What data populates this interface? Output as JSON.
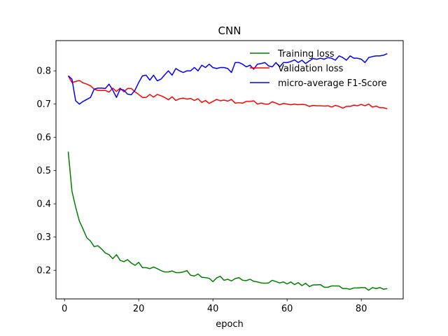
{
  "chart_data": {
    "type": "line",
    "title": "CNN",
    "xlabel": "epoch",
    "ylabel": "",
    "xlim": [
      -2.3,
      91.3
    ],
    "ylim": [
      0.114,
      0.891
    ],
    "xticks": [
      0,
      20,
      40,
      60,
      80
    ],
    "yticks": [
      0.2,
      0.3,
      0.4,
      0.5,
      0.6,
      0.7,
      0.8
    ],
    "grid": false,
    "legend_position": "top-right",
    "series": [
      {
        "name": "Training loss",
        "color": "#008000",
        "x": [
          1,
          2,
          3,
          4,
          5,
          6,
          7,
          8,
          9,
          10,
          11,
          12,
          13,
          14,
          15,
          16,
          17,
          18,
          19,
          20,
          21,
          22,
          23,
          24,
          25,
          26,
          27,
          28,
          29,
          30,
          31,
          32,
          33,
          34,
          35,
          36,
          37,
          38,
          39,
          40,
          41,
          42,
          43,
          44,
          45,
          46,
          47,
          48,
          49,
          50,
          51,
          52,
          53,
          54,
          55,
          56,
          57,
          58,
          59,
          60,
          61,
          62,
          63,
          64,
          65,
          66,
          67,
          68,
          69,
          70,
          71,
          72,
          73,
          74,
          75,
          76,
          77,
          78,
          79,
          80,
          81,
          82,
          83,
          84,
          85,
          86,
          87
        ],
        "values": [
          0.557,
          0.438,
          0.39,
          0.348,
          0.324,
          0.298,
          0.288,
          0.271,
          0.274,
          0.264,
          0.252,
          0.247,
          0.235,
          0.247,
          0.23,
          0.226,
          0.232,
          0.222,
          0.215,
          0.224,
          0.208,
          0.208,
          0.205,
          0.21,
          0.205,
          0.199,
          0.195,
          0.195,
          0.198,
          0.193,
          0.193,
          0.195,
          0.199,
          0.185,
          0.183,
          0.189,
          0.179,
          0.178,
          0.176,
          0.166,
          0.177,
          0.182,
          0.17,
          0.173,
          0.168,
          0.175,
          0.178,
          0.17,
          0.169,
          0.173,
          0.167,
          0.165,
          0.162,
          0.161,
          0.162,
          0.17,
          0.166,
          0.162,
          0.165,
          0.159,
          0.165,
          0.157,
          0.163,
          0.154,
          0.161,
          0.151,
          0.156,
          0.156,
          0.157,
          0.149,
          0.149,
          0.153,
          0.153,
          0.153,
          0.145,
          0.145,
          0.143,
          0.147,
          0.147,
          0.148,
          0.148,
          0.14,
          0.148,
          0.145,
          0.148,
          0.143,
          0.145
        ]
      },
      {
        "name": "Validation loss",
        "color": "#ff0000",
        "x": [
          1,
          2,
          3,
          4,
          5,
          6,
          7,
          8,
          9,
          10,
          11,
          12,
          13,
          14,
          15,
          16,
          17,
          18,
          19,
          20,
          21,
          22,
          23,
          24,
          25,
          26,
          27,
          28,
          29,
          30,
          31,
          32,
          33,
          34,
          35,
          36,
          37,
          38,
          39,
          40,
          41,
          42,
          43,
          44,
          45,
          46,
          47,
          48,
          49,
          50,
          51,
          52,
          53,
          54,
          55,
          56,
          57,
          58,
          59,
          60,
          61,
          62,
          63,
          64,
          65,
          66,
          67,
          68,
          69,
          70,
          71,
          72,
          73,
          74,
          75,
          76,
          77,
          78,
          79,
          80,
          81,
          82,
          83,
          84,
          85,
          86,
          87
        ],
        "values": [
          0.785,
          0.765,
          0.768,
          0.771,
          0.764,
          0.76,
          0.755,
          0.745,
          0.741,
          0.741,
          0.741,
          0.736,
          0.748,
          0.738,
          0.748,
          0.737,
          0.747,
          0.747,
          0.737,
          0.729,
          0.72,
          0.72,
          0.729,
          0.721,
          0.729,
          0.725,
          0.72,
          0.713,
          0.722,
          0.711,
          0.716,
          0.718,
          0.715,
          0.717,
          0.711,
          0.716,
          0.705,
          0.711,
          0.702,
          0.708,
          0.714,
          0.71,
          0.712,
          0.709,
          0.714,
          0.703,
          0.704,
          0.703,
          0.708,
          0.708,
          0.71,
          0.7,
          0.703,
          0.7,
          0.7,
          0.707,
          0.703,
          0.698,
          0.702,
          0.7,
          0.698,
          0.7,
          0.698,
          0.699,
          0.698,
          0.693,
          0.696,
          0.695,
          0.695,
          0.694,
          0.695,
          0.691,
          0.696,
          0.693,
          0.688,
          0.693,
          0.693,
          0.697,
          0.695,
          0.699,
          0.695,
          0.7,
          0.691,
          0.694,
          0.689,
          0.689,
          0.686
        ]
      },
      {
        "name": "micro-average F1-Score",
        "color": "#0000ff",
        "x": [
          1,
          2,
          3,
          4,
          5,
          6,
          7,
          8,
          9,
          10,
          11,
          12,
          13,
          14,
          15,
          16,
          17,
          18,
          19,
          20,
          21,
          22,
          23,
          24,
          25,
          26,
          27,
          28,
          29,
          30,
          31,
          32,
          33,
          34,
          35,
          36,
          37,
          38,
          39,
          40,
          41,
          42,
          43,
          44,
          45,
          46,
          47,
          48,
          49,
          50,
          51,
          52,
          53,
          54,
          55,
          56,
          57,
          58,
          59,
          60,
          61,
          62,
          63,
          64,
          65,
          66,
          67,
          68,
          69,
          70,
          71,
          72,
          73,
          74,
          75,
          76,
          77,
          78,
          79,
          80,
          81,
          82,
          83,
          84,
          85,
          86,
          87
        ],
        "values": [
          0.785,
          0.775,
          0.71,
          0.7,
          0.708,
          0.714,
          0.72,
          0.745,
          0.748,
          0.748,
          0.747,
          0.76,
          0.742,
          0.72,
          0.745,
          0.742,
          0.73,
          0.728,
          0.742,
          0.765,
          0.785,
          0.787,
          0.772,
          0.787,
          0.77,
          0.775,
          0.788,
          0.8,
          0.787,
          0.807,
          0.8,
          0.795,
          0.8,
          0.8,
          0.81,
          0.8,
          0.817,
          0.81,
          0.82,
          0.81,
          0.807,
          0.81,
          0.81,
          0.807,
          0.795,
          0.825,
          0.825,
          0.82,
          0.812,
          0.817,
          0.805,
          0.82,
          0.822,
          0.825,
          0.815,
          0.812,
          0.825,
          0.812,
          0.825,
          0.825,
          0.828,
          0.833,
          0.825,
          0.832,
          0.822,
          0.83,
          0.837,
          0.835,
          0.838,
          0.835,
          0.84,
          0.838,
          0.832,
          0.845,
          0.84,
          0.832,
          0.845,
          0.838,
          0.838,
          0.835,
          0.825,
          0.84,
          0.843,
          0.845,
          0.845,
          0.847,
          0.852
        ]
      }
    ]
  }
}
